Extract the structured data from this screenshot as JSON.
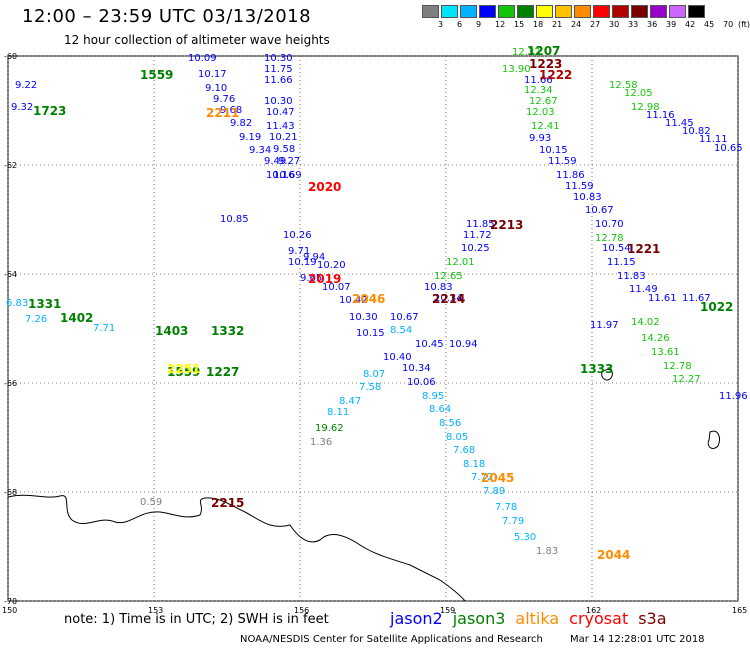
{
  "header": {
    "title": "12:00 – 23:59 UTC 03/13/2018",
    "subtitle": "12 hour collection of altimeter wave heights"
  },
  "colorbar": {
    "colors": [
      "#7f7f7f",
      "#00e5ff",
      "#00b2ff",
      "#0000ff",
      "#13c60a",
      "#008000",
      "#ffff00",
      "#ffc200",
      "#ff8c00",
      "#ff0000",
      "#b00000",
      "#7a0000",
      "#9900cc",
      "#cc66ff",
      "#000000"
    ],
    "labels": [
      "3",
      "6",
      "9",
      "12",
      "15",
      "18",
      "21",
      "24",
      "27",
      "30",
      "33",
      "36",
      "39",
      "42",
      "45",
      "70",
      "(ft)"
    ]
  },
  "axes": {
    "lat_labels": [
      "-60",
      "-62",
      "-64",
      "-66",
      "-68",
      "-70"
    ],
    "lon_labels": [
      "150",
      "153",
      "156",
      "159",
      "162",
      "165"
    ]
  },
  "map_data": {
    "lon_range": [
      150,
      165
    ],
    "lat_range": [
      -70,
      -60
    ],
    "coastline_description": "Antarctic coastline along bottom",
    "wave_heights_ft": [
      {
        "v": "10.30",
        "lon": 155.5,
        "lat": -60.05,
        "c": "#0000ff"
      },
      {
        "v": "11.75",
        "lon": 155.5,
        "lat": -60.25,
        "c": "#0000ff"
      },
      {
        "v": "11.66",
        "lon": 155.5,
        "lat": -60.45,
        "c": "#0000ff"
      },
      {
        "v": "10.30",
        "lon": 155.5,
        "lat": -60.85,
        "c": "#0000ff"
      },
      {
        "v": "10.47",
        "lon": 155.55,
        "lat": -61.05,
        "c": "#0000ff"
      },
      {
        "v": "11.43",
        "lon": 155.55,
        "lat": -61.3,
        "c": "#0000ff"
      },
      {
        "v": "10.21",
        "lon": 155.6,
        "lat": -61.5,
        "c": "#0000ff"
      },
      {
        "v": "9.58",
        "lon": 155.7,
        "lat": -61.72,
        "c": "#0000ff"
      },
      {
        "v": "9.27",
        "lon": 155.8,
        "lat": -61.95,
        "c": "#0000ff"
      },
      {
        "v": "10.69",
        "lon": 155.7,
        "lat": -62.2,
        "c": "#0000ff"
      },
      {
        "v": "9.34",
        "lon": 155.2,
        "lat": -61.75,
        "c": "#0000ff"
      },
      {
        "v": "9.19",
        "lon": 155.0,
        "lat": -61.5,
        "c": "#0000ff"
      },
      {
        "v": "9.82",
        "lon": 154.8,
        "lat": -61.25,
        "c": "#0000ff"
      },
      {
        "v": "9.68",
        "lon": 154.6,
        "lat": -61.0,
        "c": "#0000ff"
      },
      {
        "v": "9.76",
        "lon": 154.45,
        "lat": -60.8,
        "c": "#0000ff"
      },
      {
        "v": "9.10",
        "lon": 154.3,
        "lat": -60.6,
        "c": "#0000ff"
      },
      {
        "v": "10.17",
        "lon": 154.15,
        "lat": -60.35,
        "c": "#0000ff"
      },
      {
        "v": "10.09",
        "lon": 153.95,
        "lat": -60.05,
        "c": "#0000ff"
      },
      {
        "v": "9.49",
        "lon": 155.5,
        "lat": -61.95,
        "c": "#0000ff"
      },
      {
        "v": "10.16",
        "lon": 155.55,
        "lat": -62.2,
        "c": "#0000ff"
      },
      {
        "v": "10.26",
        "lon": 155.9,
        "lat": -63.3,
        "c": "#0000ff"
      },
      {
        "v": "9.71",
        "lon": 156.0,
        "lat": -63.6,
        "c": "#0000ff"
      },
      {
        "v": "10.19",
        "lon": 156.0,
        "lat": -63.8,
        "c": "#0000ff"
      },
      {
        "v": "9.65",
        "lon": 156.25,
        "lat": -64.1,
        "c": "#0000ff"
      },
      {
        "v": "9.94",
        "lon": 156.3,
        "lat": -63.7,
        "c": "#0000ff"
      },
      {
        "v": "10.20",
        "lon": 156.6,
        "lat": -63.85,
        "c": "#0000ff"
      },
      {
        "v": "10.07",
        "lon": 156.7,
        "lat": -64.25,
        "c": "#0000ff"
      },
      {
        "v": "10.42",
        "lon": 157.05,
        "lat": -64.5,
        "c": "#0000ff"
      },
      {
        "v": "10.30",
        "lon": 157.25,
        "lat": -64.8,
        "c": "#0000ff"
      },
      {
        "v": "10.15",
        "lon": 157.4,
        "lat": -65.1,
        "c": "#0000ff"
      },
      {
        "v": "10.67",
        "lon": 158.1,
        "lat": -64.8,
        "c": "#0000ff"
      },
      {
        "v": "10.34",
        "lon": 159.0,
        "lat": -64.45,
        "c": "#0000ff"
      },
      {
        "v": "10.83",
        "lon": 158.8,
        "lat": -64.25,
        "c": "#0000ff"
      },
      {
        "v": "10.25",
        "lon": 159.55,
        "lat": -63.55,
        "c": "#0000ff"
      },
      {
        "v": "11.72",
        "lon": 159.6,
        "lat": -63.3,
        "c": "#0000ff"
      },
      {
        "v": "11.85",
        "lon": 159.65,
        "lat": -63.1,
        "c": "#0000ff"
      },
      {
        "v": "10.06",
        "lon": 158.45,
        "lat": -66.0,
        "c": "#0000ff"
      },
      {
        "v": "9.93",
        "lon": 160.95,
        "lat": -61.52,
        "c": "#0000ff"
      },
      {
        "v": "10.15",
        "lon": 161.15,
        "lat": -61.75,
        "c": "#0000ff"
      },
      {
        "v": "11.59",
        "lon": 161.35,
        "lat": -61.95,
        "c": "#0000ff"
      },
      {
        "v": "11.86",
        "lon": 161.5,
        "lat": -62.2,
        "c": "#0000ff"
      },
      {
        "v": "11.59",
        "lon": 161.7,
        "lat": -62.4,
        "c": "#0000ff"
      },
      {
        "v": "10.83",
        "lon": 161.85,
        "lat": -62.6,
        "c": "#0000ff"
      },
      {
        "v": "10.67",
        "lon": 162.1,
        "lat": -62.85,
        "c": "#0000ff"
      },
      {
        "v": "10.70",
        "lon": 162.3,
        "lat": -63.1,
        "c": "#0000ff"
      },
      {
        "v": "10.54",
        "lon": 162.45,
        "lat": -63.55,
        "c": "#0000ff"
      },
      {
        "v": "11.15",
        "lon": 162.55,
        "lat": -63.8,
        "c": "#0000ff"
      },
      {
        "v": "11.83",
        "lon": 162.75,
        "lat": -64.05,
        "c": "#0000ff"
      },
      {
        "v": "11.49",
        "lon": 163.0,
        "lat": -64.3,
        "c": "#0000ff"
      },
      {
        "v": "11.66",
        "lon": 160.85,
        "lat": -60.45,
        "c": "#0000ff"
      },
      {
        "v": "11.16",
        "lon": 163.35,
        "lat": -61.1,
        "c": "#0000ff"
      },
      {
        "v": "11.45",
        "lon": 163.75,
        "lat": -61.25,
        "c": "#0000ff"
      },
      {
        "v": "10.82",
        "lon": 164.1,
        "lat": -61.4,
        "c": "#0000ff"
      },
      {
        "v": "11.11",
        "lon": 164.45,
        "lat": -61.55,
        "c": "#0000ff"
      },
      {
        "v": "10.65",
        "lon": 164.75,
        "lat": -61.7,
        "c": "#0000ff"
      },
      {
        "v": "11.61",
        "lon": 163.4,
        "lat": -64.45,
        "c": "#0000ff"
      },
      {
        "v": "11.67",
        "lon": 164.1,
        "lat": -64.45,
        "c": "#0000ff"
      },
      {
        "v": "11.97",
        "lon": 162.2,
        "lat": -64.95,
        "c": "#0000ff"
      },
      {
        "v": "11.96",
        "lon": 164.85,
        "lat": -66.25,
        "c": "#0000ff"
      },
      {
        "v": "9.32",
        "lon": 150.3,
        "lat": -60.95,
        "c": "#0000ff"
      },
      {
        "v": "9.22",
        "lon": 150.4,
        "lat": -60.55,
        "c": "#0000ff"
      },
      {
        "v": "10.85",
        "lon": 154.6,
        "lat": -63.0,
        "c": "#0000ff"
      },
      {
        "v": "8.07",
        "lon": 157.55,
        "lat": -65.85,
        "c": "#00b2ff"
      },
      {
        "v": "7.58",
        "lon": 157.45,
        "lat": -66.1,
        "c": "#00b2ff"
      },
      {
        "v": "8.47",
        "lon": 157.05,
        "lat": -66.35,
        "c": "#00b2ff"
      },
      {
        "v": "8.11",
        "lon": 156.8,
        "lat": -66.55,
        "c": "#00b2ff"
      },
      {
        "v": "8.54",
        "lon": 158.1,
        "lat": -65.05,
        "c": "#00b2ff"
      },
      {
        "v": "8.95",
        "lon": 158.75,
        "lat": -66.25,
        "c": "#00b2ff"
      },
      {
        "v": "8.64",
        "lon": 158.9,
        "lat": -66.5,
        "c": "#00b2ff"
      },
      {
        "v": "8.56",
        "lon": 159.1,
        "lat": -66.75,
        "c": "#00b2ff"
      },
      {
        "v": "8.05",
        "lon": 159.25,
        "lat": -67.0,
        "c": "#00b2ff"
      },
      {
        "v": "7.68",
        "lon": 159.4,
        "lat": -67.25,
        "c": "#00b2ff"
      },
      {
        "v": "8.18",
        "lon": 159.6,
        "lat": -67.5,
        "c": "#00b2ff"
      },
      {
        "v": "7.72",
        "lon": 159.75,
        "lat": -67.75,
        "c": "#00b2ff"
      },
      {
        "v": "7.89",
        "lon": 160.0,
        "lat": -68.0,
        "c": "#00b2ff"
      },
      {
        "v": "7.78",
        "lon": 160.25,
        "lat": -68.3,
        "c": "#00b2ff"
      },
      {
        "v": "7.79",
        "lon": 160.4,
        "lat": -68.55,
        "c": "#00b2ff"
      },
      {
        "v": "5.30",
        "lon": 160.65,
        "lat": -68.85,
        "c": "#00b2ff"
      },
      {
        "v": "1.83",
        "lon": 161.1,
        "lat": -69.1,
        "c": "#7f7f7f"
      },
      {
        "v": "1.36",
        "lon": 156.45,
        "lat": -67.1,
        "c": "#7f7f7f"
      },
      {
        "v": "0.59",
        "lon": 152.95,
        "lat": -68.2,
        "c": "#7f7f7f"
      },
      {
        "v": "19.62",
        "lon": 156.55,
        "lat": -66.85,
        "c": "#008000"
      },
      {
        "v": "12.32",
        "lon": 160.6,
        "lat": -59.95,
        "c": "#13c60a"
      },
      {
        "v": "13.90",
        "lon": 160.4,
        "lat": -60.25,
        "c": "#13c60a"
      },
      {
        "v": "12.34",
        "lon": 160.85,
        "lat": -60.65,
        "c": "#13c60a"
      },
      {
        "v": "12.67",
        "lon": 160.95,
        "lat": -60.85,
        "c": "#13c60a"
      },
      {
        "v": "12.03",
        "lon": 160.9,
        "lat": -61.05,
        "c": "#13c60a"
      },
      {
        "v": "12.41",
        "lon": 161.0,
        "lat": -61.3,
        "c": "#13c60a"
      },
      {
        "v": "12.58",
        "lon": 162.6,
        "lat": -60.55,
        "c": "#13c60a"
      },
      {
        "v": "12.05",
        "lon": 162.9,
        "lat": -60.7,
        "c": "#13c60a"
      },
      {
        "v": "12.98",
        "lon": 163.05,
        "lat": -60.95,
        "c": "#13c60a"
      },
      {
        "v": "12.78",
        "lon": 162.3,
        "lat": -63.35,
        "c": "#13c60a"
      },
      {
        "v": "12.01",
        "lon": 159.25,
        "lat": -63.8,
        "c": "#13c60a"
      },
      {
        "v": "12.65",
        "lon": 159.0,
        "lat": -64.05,
        "c": "#13c60a"
      },
      {
        "v": "14.02",
        "lon": 163.05,
        "lat": -64.9,
        "c": "#13c60a"
      },
      {
        "v": "14.26",
        "lon": 163.25,
        "lat": -65.2,
        "c": "#13c60a"
      },
      {
        "v": "13.61",
        "lon": 163.45,
        "lat": -65.45,
        "c": "#13c60a"
      },
      {
        "v": "12.78",
        "lon": 163.7,
        "lat": -65.7,
        "c": "#13c60a"
      },
      {
        "v": "12.27",
        "lon": 163.9,
        "lat": -65.95,
        "c": "#13c60a"
      },
      {
        "v": "6.83",
        "lon": 150.2,
        "lat": -64.55,
        "c": "#00b2ff"
      },
      {
        "v": "7.26",
        "lon": 150.6,
        "lat": -64.85,
        "c": "#00b2ff"
      },
      {
        "v": "7.71",
        "lon": 152.0,
        "lat": -65.0,
        "c": "#00b2ff"
      },
      {
        "v": "10.45",
        "lon": 158.6,
        "lat": -65.3,
        "c": "#0000ff"
      },
      {
        "v": "10.94",
        "lon": 159.3,
        "lat": -65.3,
        "c": "#0000ff"
      },
      {
        "v": "10.34",
        "lon": 158.35,
        "lat": -65.75,
        "c": "#0000ff"
      },
      {
        "v": "10.40",
        "lon": 157.95,
        "lat": -65.55,
        "c": "#0000ff"
      }
    ],
    "pass_times_utc": [
      {
        "t": "1207",
        "lon": 160.95,
        "lat": -59.9,
        "c": "#008000"
      },
      {
        "t": "1223",
        "lon": 161.0,
        "lat": -60.15,
        "c": "#7a0000"
      },
      {
        "t": "1222",
        "lon": 161.2,
        "lat": -60.35,
        "c": "#b00000"
      },
      {
        "t": "2020",
        "lon": 156.45,
        "lat": -62.4,
        "c": "#ff0000"
      },
      {
        "t": "2019",
        "lon": 156.45,
        "lat": -64.1,
        "c": "#ff0000"
      },
      {
        "t": "2046",
        "lon": 157.35,
        "lat": -64.45,
        "c": "#ff8c00"
      },
      {
        "t": "2214",
        "lon": 159.0,
        "lat": -64.45,
        "c": "#7a0000"
      },
      {
        "t": "2213",
        "lon": 160.2,
        "lat": -63.1,
        "c": "#7a0000"
      },
      {
        "t": "1221",
        "lon": 163.0,
        "lat": -63.55,
        "c": "#7a0000"
      },
      {
        "t": "2045",
        "lon": 160.0,
        "lat": -67.75,
        "c": "#ff8c00"
      },
      {
        "t": "2044",
        "lon": 162.4,
        "lat": -69.15,
        "c": "#ff8c00"
      },
      {
        "t": "2215",
        "lon": 154.45,
        "lat": -68.2,
        "c": "#7a0000"
      },
      {
        "t": "1331",
        "lon": 150.7,
        "lat": -64.55,
        "c": "#008000"
      },
      {
        "t": "1402",
        "lon": 151.35,
        "lat": -64.8,
        "c": "#008000"
      },
      {
        "t": "1403",
        "lon": 153.3,
        "lat": -65.05,
        "c": "#008000"
      },
      {
        "t": "1332",
        "lon": 154.45,
        "lat": -65.05,
        "c": "#008000"
      },
      {
        "t": "1559",
        "lon": 153.0,
        "lat": -60.35,
        "c": "#008000"
      },
      {
        "t": "1723",
        "lon": 150.8,
        "lat": -61.0,
        "c": "#008000"
      },
      {
        "t": "1559",
        "lon": 153.55,
        "lat": -65.8,
        "c": "#008000"
      },
      {
        "t": "1227",
        "lon": 154.35,
        "lat": -65.8,
        "c": "#008000"
      },
      {
        "t": "1333",
        "lon": 162.05,
        "lat": -65.75,
        "c": "#008000"
      },
      {
        "t": "1022",
        "lon": 164.5,
        "lat": -64.6,
        "c": "#008000"
      },
      {
        "t": "2211",
        "lon": 154.35,
        "lat": -61.05,
        "c": "#ff8c00"
      },
      {
        "t": "2251",
        "lon": 153.55,
        "lat": -65.75,
        "c": "#ffff00"
      }
    ]
  },
  "note": "note: 1) Time is in UTC; 2) SWH is in feet",
  "legend": [
    {
      "name": "jason2",
      "color": "#0000ff"
    },
    {
      "name": "jason3",
      "color": "#008000"
    },
    {
      "name": "altika",
      "color": "#ff8c00"
    },
    {
      "name": "cryosat",
      "color": "#ff0000"
    },
    {
      "name": "s3a",
      "color": "#7a0000"
    }
  ],
  "footer": {
    "org": "NOAA/NESDIS Center for Satellite Applications and Research",
    "time": "Mar 14 12:28:01 UTC 2018"
  }
}
